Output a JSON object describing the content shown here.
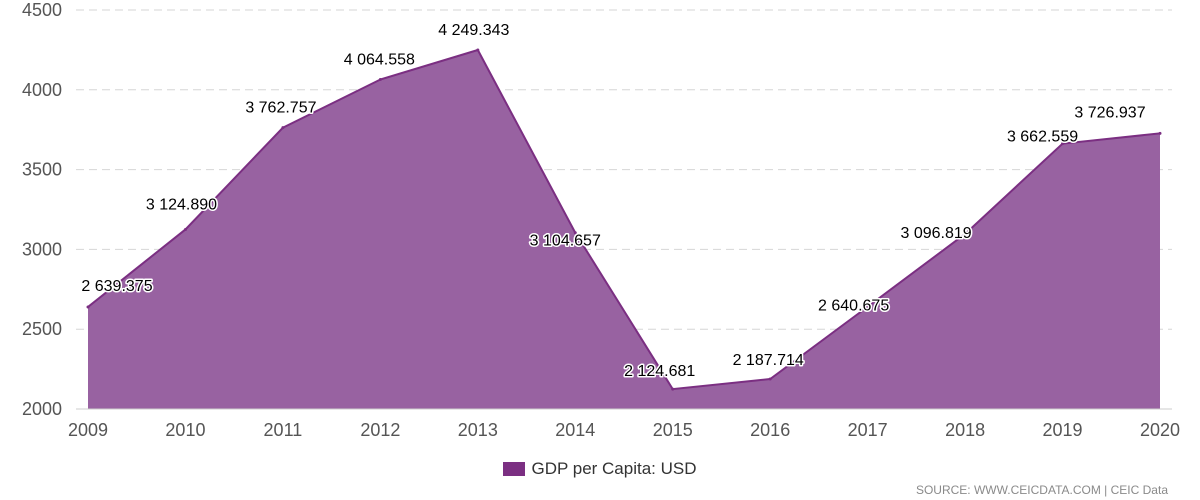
{
  "chart_data": {
    "type": "area",
    "categories": [
      "2009",
      "2010",
      "2011",
      "2012",
      "2013",
      "2014",
      "2015",
      "2016",
      "2017",
      "2018",
      "2019",
      "2020"
    ],
    "series": [
      {
        "name": "GDP per Capita: USD",
        "values": [
          2639.375,
          3124.89,
          3762.757,
          4064.558,
          4249.343,
          3104.657,
          2124.681,
          2187.714,
          2640.675,
          3096.819,
          3662.559,
          3726.937
        ],
        "labels": [
          "2 639.375",
          "3 124.890",
          "3 762.757",
          "4 064.558",
          "4 249.343",
          "3 104.657",
          "2 124.681",
          "2 187.714",
          "2 640.675",
          "3 096.819",
          "3 662.559",
          "3 726.937"
        ],
        "color": "#7b2f82",
        "fill_color": "#9862a1"
      }
    ],
    "ylim": [
      2000,
      4500
    ],
    "yticks": [
      2000,
      2500,
      3000,
      3500,
      4000,
      4500
    ],
    "grid": true,
    "legend_position": "bottom-center"
  },
  "legend": {
    "label": "GDP per Capita: USD",
    "color": "#7b2f82"
  },
  "source": "SOURCE: WWW.CEICDATA.COM | CEIC Data"
}
